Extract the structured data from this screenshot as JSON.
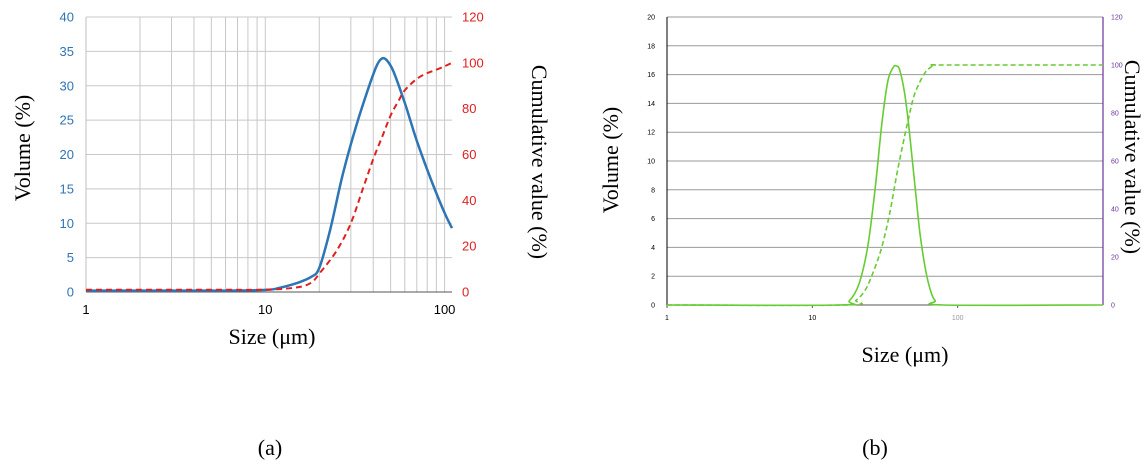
{
  "chart_data": [
    {
      "type": "line",
      "panel_label": "(a)",
      "xlabel": "Size (μm)",
      "ylabel": "Volume (%)",
      "y2label": "Cumulative value (%)",
      "x_scale": "log",
      "xlim": [
        1,
        110
      ],
      "ylim": [
        0,
        40
      ],
      "y2lim": [
        0,
        120
      ],
      "grid": true,
      "x_ticks": [
        1,
        10,
        100
      ],
      "y_ticks": [
        0,
        5,
        10,
        15,
        20,
        25,
        30,
        35,
        40
      ],
      "y2_ticks": [
        0,
        20,
        40,
        60,
        80,
        100,
        120
      ],
      "colors": {
        "axis_left": "#2e75b6",
        "axis_right": "#e02020",
        "grid": "#c8c8c8"
      },
      "series": [
        {
          "axis": "left",
          "color": "#2e75b6",
          "style": "solid",
          "x": [
            1,
            5,
            10,
            12,
            15,
            18,
            20,
            23,
            27,
            32,
            38,
            42,
            45,
            48,
            52,
            60,
            70,
            85,
            100,
            110
          ],
          "y": [
            0.2,
            0.2,
            0.3,
            0.6,
            1.3,
            2.2,
            3.5,
            9,
            17,
            24,
            30,
            33,
            34,
            33.6,
            32,
            27.5,
            22,
            16,
            11.5,
            9.3
          ]
        },
        {
          "axis": "right",
          "color": "#e02020",
          "style": "dashed",
          "x": [
            1,
            5,
            10,
            15,
            18,
            20,
            25,
            30,
            35,
            40,
            45,
            50,
            55,
            60,
            70,
            80,
            90,
            100,
            110
          ],
          "y": [
            1,
            1,
            1,
            2,
            4,
            8,
            18,
            30,
            45,
            58,
            68,
            77,
            83,
            88,
            93,
            95.5,
            97,
            98.5,
            100
          ]
        }
      ]
    },
    {
      "type": "line",
      "panel_label": "(b)",
      "xlabel": "Size (μm)",
      "ylabel": "Volume (%)",
      "y2label": "Cumulative value (%)",
      "x_scale": "log",
      "xlim": [
        1,
        1000
      ],
      "ylim": [
        0,
        20
      ],
      "y2lim": [
        0,
        120
      ],
      "grid": true,
      "x_ticks": [
        1,
        10,
        100
      ],
      "y_ticks": [
        0,
        2,
        4,
        6,
        8,
        10,
        12,
        14,
        16,
        18,
        20
      ],
      "y2_ticks": [
        0,
        20,
        40,
        60,
        80,
        100,
        120
      ],
      "colors": {
        "axis_left": "#000000",
        "axis_right": "#7030a0",
        "line": "#66cc33",
        "grid": "#999999"
      },
      "series": [
        {
          "axis": "left",
          "color": "#66cc33",
          "style": "solid",
          "x": [
            1,
            15,
            18,
            21,
            24,
            27,
            30,
            33,
            36,
            38,
            40,
            43,
            46,
            50,
            55,
            60,
            65,
            70,
            80,
            1000
          ],
          "y": [
            0,
            0,
            0.3,
            1.5,
            4,
            8,
            12.5,
            15.5,
            16.5,
            16.6,
            16.3,
            14.8,
            12.5,
            9,
            5,
            2.5,
            1,
            0.3,
            0,
            0
          ]
        },
        {
          "axis": "right",
          "color": "#66cc33",
          "style": "dashed",
          "x": [
            1,
            17,
            20,
            23,
            26,
            30,
            34,
            38,
            42,
            46,
            50,
            55,
            60,
            65,
            70,
            80,
            1000
          ],
          "y": [
            0,
            0,
            2,
            6,
            13,
            24,
            38,
            54,
            67,
            78,
            87,
            93,
            97,
            99,
            100,
            100,
            100
          ]
        }
      ]
    }
  ]
}
